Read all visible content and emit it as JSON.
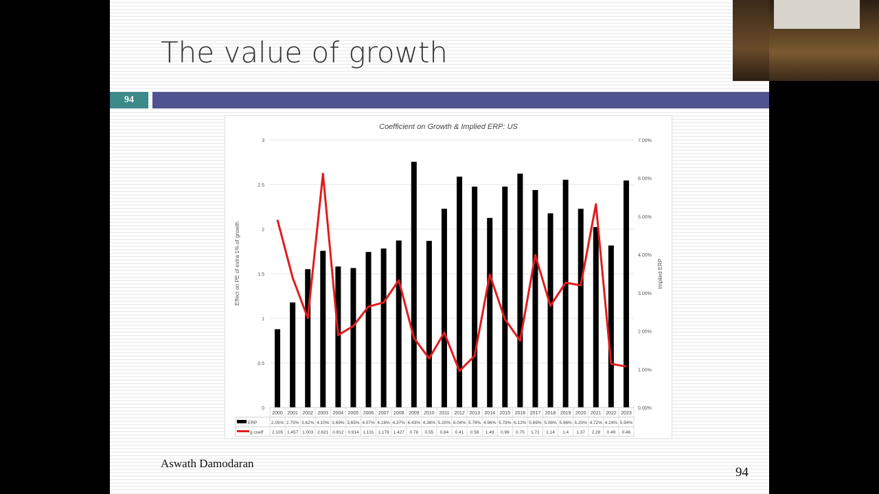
{
  "slide": {
    "title": "The value of growth",
    "slide_number_badge": "94",
    "author": "Aswath Damodaran",
    "page_number": "94"
  },
  "chart_data": {
    "type": "bar+line",
    "title": "Coefficient on Growth & Implied ERP: US",
    "ylabel": "Effect on PE of extra 1% of growth",
    "y2label": "Implied ERP",
    "ylim": [
      0,
      3
    ],
    "yticks": [
      "0",
      "0.5",
      "1",
      "1.5",
      "2",
      "2.5",
      "3"
    ],
    "y2lim": [
      0,
      7
    ],
    "y2ticks": [
      "0.00%",
      "1.00%",
      "2.00%",
      "3.00%",
      "4.00%",
      "5.00%",
      "6.00%",
      "7.00%"
    ],
    "grid": true,
    "categories": [
      "2000",
      "2001",
      "2002",
      "2003",
      "2004",
      "2005",
      "2006",
      "2007",
      "2008",
      "2009",
      "2010",
      "2011",
      "2012",
      "2013",
      "2014",
      "2015",
      "2016",
      "2017",
      "2018",
      "2019",
      "2020",
      "2021",
      "2022",
      "2023"
    ],
    "series": [
      {
        "name": "ERP",
        "type": "bar",
        "axis": "right",
        "color": "#000000",
        "values": [
          2.05,
          2.75,
          3.62,
          4.1,
          3.69,
          3.65,
          4.07,
          4.16,
          4.37,
          6.43,
          4.36,
          5.2,
          6.04,
          5.78,
          4.96,
          5.78,
          6.12,
          5.69,
          5.08,
          5.96,
          5.2,
          4.72,
          4.24,
          5.94
        ],
        "labels": [
          "2.05%",
          "2.75%",
          "3.62%",
          "4.10%",
          "3.69%",
          "3.65%",
          "4.07%",
          "4.16%",
          "4.37%",
          "6.43%",
          "4.36%",
          "5.20%",
          "6.04%",
          "5.78%",
          "4.96%",
          "5.78%",
          "6.12%",
          "5.69%",
          "5.08%",
          "5.96%",
          "5.20%",
          "4.72%",
          "4.24%",
          "5.94%"
        ]
      },
      {
        "name": "g coeff",
        "type": "line",
        "axis": "left",
        "color": "#e31a1c",
        "values": [
          2.105,
          1.457,
          1.003,
          2.621,
          0.812,
          0.914,
          1.131,
          1.178,
          1.427,
          0.78,
          0.55,
          0.84,
          0.41,
          0.58,
          1.49,
          0.99,
          0.75,
          1.71,
          1.14,
          1.4,
          1.37,
          2.28,
          0.49,
          0.46
        ],
        "labels": [
          "2.105",
          "1.457",
          "1.003",
          "2.621",
          "0.812",
          "0.914",
          "1.131",
          "1.178",
          "1.427",
          "0.78",
          "0.55",
          "0.84",
          "0.41",
          "0.58",
          "1.49",
          "0.99",
          "0.75",
          "1.71",
          "1.14",
          "1.4",
          "1.37",
          "2.28",
          "0.49",
          "0.46"
        ]
      }
    ]
  }
}
